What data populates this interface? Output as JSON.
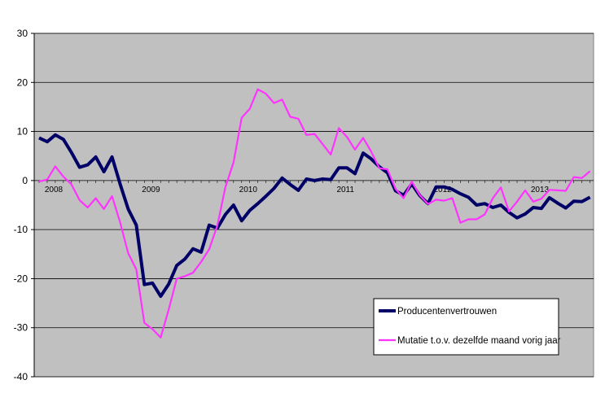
{
  "chart_data": {
    "type": "line",
    "title": "",
    "xlabel": "",
    "ylabel": "",
    "ylim": [
      -40,
      30
    ],
    "yticks": [
      30,
      20,
      10,
      0,
      -10,
      -20,
      -30,
      -40
    ],
    "x_start": "2008-01",
    "x_end": "2013-08",
    "year_labels": [
      "2008",
      "2009",
      "2010",
      "2011",
      "2012",
      "2013"
    ],
    "grid": true,
    "plot_background": "#c0c0c0",
    "legend_position": "bottom-right",
    "series": [
      {
        "name": "Producentenvertrouwen",
        "color": "#000066",
        "values": [
          8.7,
          7.9,
          9.3,
          8.4,
          5.7,
          2.7,
          3.2,
          4.8,
          1.8,
          4.8,
          -0.7,
          -5.8,
          -9.1,
          -21.2,
          -20.9,
          -23.6,
          -21.1,
          -17.3,
          -16.0,
          -13.9,
          -14.6,
          -9.1,
          -9.7,
          -6.9,
          -5.0,
          -8.2,
          -6.1,
          -4.7,
          -3.2,
          -1.6,
          0.5,
          -0.8,
          -2.0,
          0.3,
          0.0,
          0.3,
          0.2,
          2.6,
          2.6,
          1.4,
          5.6,
          4.4,
          2.8,
          1.6,
          -2.1,
          -3.0,
          -0.7,
          -3.1,
          -4.7,
          -1.3,
          -1.3,
          -1.8,
          -2.7,
          -3.4,
          -5.0,
          -4.7,
          -5.5,
          -5.0,
          -6.5,
          -7.6,
          -6.8,
          -5.5,
          -5.7,
          -3.5,
          -4.6,
          -5.6,
          -4.2,
          -4.3,
          -3.4
        ]
      },
      {
        "name": "Mutatie t.o.v. dezelfde maand vorig jaar",
        "color": "#ff33ff",
        "values": [
          -0.2,
          0.2,
          2.9,
          0.8,
          -0.8,
          -4.0,
          -5.5,
          -3.6,
          -5.8,
          -3.2,
          -8.5,
          -14.8,
          -18.1,
          -29.0,
          -30.3,
          -32.0,
          -26.3,
          -20.0,
          -19.5,
          -18.8,
          -16.6,
          -14.0,
          -9.2,
          -1.3,
          3.7,
          12.8,
          14.6,
          18.6,
          17.7,
          15.8,
          16.5,
          13.0,
          12.6,
          9.3,
          9.5,
          7.4,
          5.3,
          10.7,
          8.9,
          6.3,
          8.7,
          5.9,
          2.5,
          2.3,
          -1.7,
          -3.6,
          -0.2,
          -3.0,
          -4.8,
          -3.9,
          -4.1,
          -3.6,
          -8.6,
          -7.9,
          -7.9,
          -6.9,
          -3.6,
          -1.4,
          -6.3,
          -4.3,
          -2.0,
          -4.3,
          -3.7,
          -1.9,
          -2.0,
          -2.1,
          0.7,
          0.5,
          1.9
        ]
      }
    ]
  }
}
